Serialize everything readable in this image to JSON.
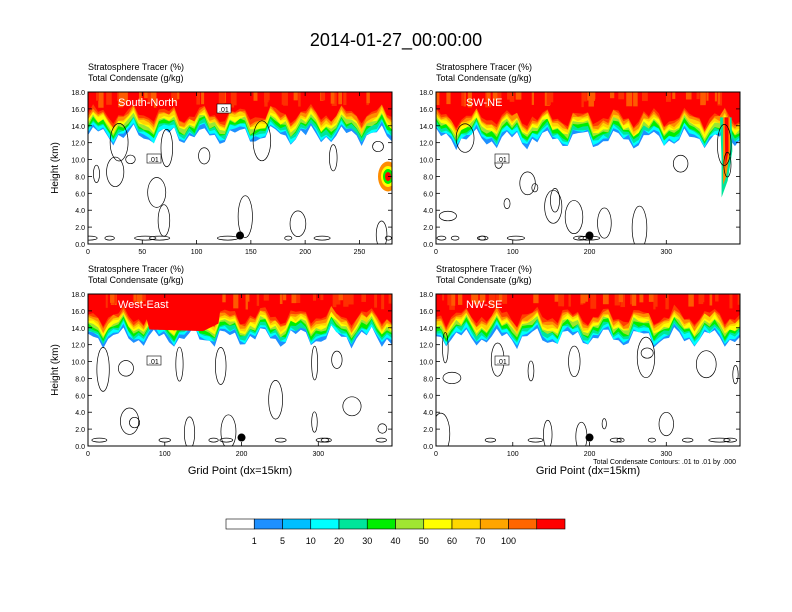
{
  "page": {
    "title": "2014-01-27_00:00:00",
    "footnote": "Total Condensate Contours: .01 to .01 by .000",
    "xlabel": "Grid Point (dx=15km)"
  },
  "colorbar": {
    "labels": [
      "1",
      "5",
      "10",
      "20",
      "30",
      "40",
      "50",
      "60",
      "70",
      "100"
    ],
    "colors": [
      "#ffffff",
      "#1e90ff",
      "#00bfff",
      "#00ffff",
      "#00e59a",
      "#00ee00",
      "#a0e632",
      "#ffff00",
      "#ffd700",
      "#ffa500",
      "#ff6600",
      "#ff0000"
    ]
  },
  "chart_data": [
    {
      "type": "heatmap",
      "panel_label": "South-North",
      "subtitle_line1": "Stratosphere Tracer   (%)",
      "subtitle_line2": "Total Condensate   (g/kg)",
      "ylabel": "Height (km)",
      "xlabel": "",
      "xlim": [
        0,
        280
      ],
      "ylim": [
        0,
        18
      ],
      "xticks": [
        "0",
        "50",
        "100",
        "150",
        "200",
        "250"
      ],
      "xtick_values": [
        0,
        50,
        100,
        150,
        200,
        250
      ],
      "yticks": [
        "0.0",
        "2.0",
        "4.0",
        "6.0",
        "8.0",
        "10.0",
        "12.0",
        "14.0",
        "16.0",
        "18.0"
      ],
      "contour_labels": [
        ".01",
        ".01",
        ".01"
      ],
      "tropopause_km": 15.6,
      "marker_x": 140,
      "marker_y": 1.0
    },
    {
      "type": "heatmap",
      "panel_label": "SW-NE",
      "subtitle_line1": "Stratosphere Tracer   (%)",
      "subtitle_line2": "Total Condensate   (g/kg)",
      "ylabel": "",
      "xlabel": "",
      "xlim": [
        0,
        396
      ],
      "ylim": [
        0,
        18
      ],
      "xticks": [
        "0",
        "100",
        "200",
        "300"
      ],
      "xtick_values": [
        0,
        100,
        200,
        300
      ],
      "yticks": [
        "0.0",
        "2.0",
        "4.0",
        "6.0",
        "8.0",
        "10.0",
        "12.0",
        "14.0",
        "16.0",
        "18.0"
      ],
      "contour_labels": [
        ".01"
      ],
      "tropopause_km": 15.2,
      "marker_x": 200,
      "marker_y": 1.0
    },
    {
      "type": "heatmap",
      "panel_label": "West-East",
      "subtitle_line1": "Stratosphere Tracer   (%)",
      "subtitle_line2": "Total Condensate   (g/kg)",
      "ylabel": "Height (km)",
      "xlabel": "Grid Point (dx=15km)",
      "xlim": [
        0,
        396
      ],
      "ylim": [
        0,
        18
      ],
      "xticks": [
        "0",
        "100",
        "200",
        "300"
      ],
      "xtick_values": [
        0,
        100,
        200,
        300
      ],
      "yticks": [
        "0.0",
        "2.0",
        "4.0",
        "6.0",
        "8.0",
        "10.0",
        "12.0",
        "14.0",
        "16.0",
        "18.0"
      ],
      "contour_labels": [
        ".01"
      ],
      "tropopause_km": 15.6,
      "marker_x": 200,
      "marker_y": 1.0
    },
    {
      "type": "heatmap",
      "panel_label": "NW-SE",
      "subtitle_line1": "Stratosphere Tracer   (%)",
      "subtitle_line2": "Total Condensate   (g/kg)",
      "ylabel": "",
      "xlabel": "Grid Point (dx=15km)",
      "xlim": [
        0,
        396
      ],
      "ylim": [
        0,
        18
      ],
      "xticks": [
        "0",
        "100",
        "200",
        "300"
      ],
      "xtick_values": [
        0,
        100,
        200,
        300
      ],
      "yticks": [
        "0.0",
        "2.0",
        "4.0",
        "6.0",
        "8.0",
        "10.0",
        "12.0",
        "14.0",
        "16.0",
        "18.0"
      ],
      "contour_labels": [
        ".01"
      ],
      "tropopause_km": 15.6,
      "marker_x": 200,
      "marker_y": 1.0
    }
  ]
}
